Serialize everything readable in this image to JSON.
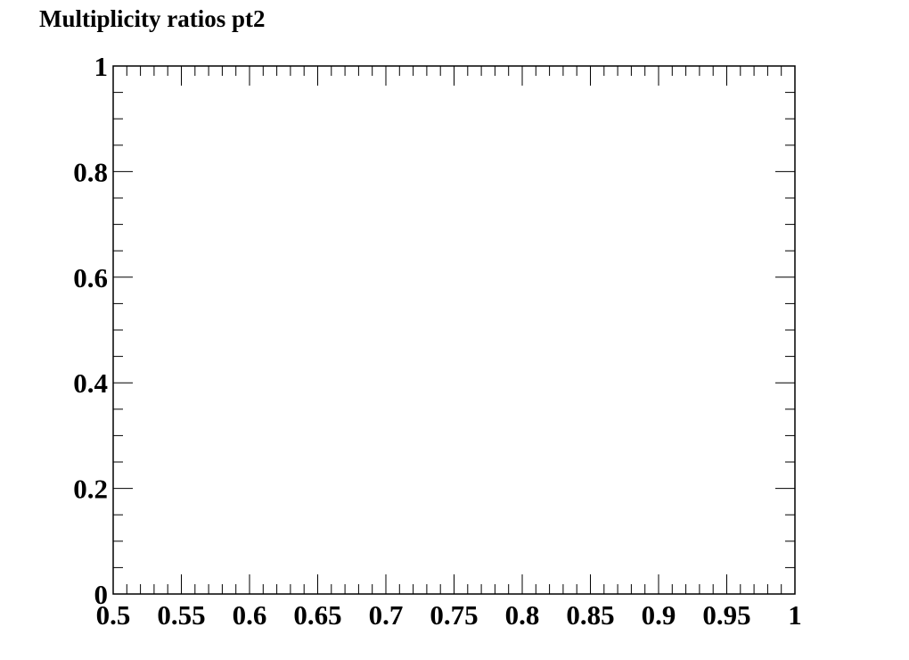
{
  "chart_data": {
    "type": "scatter",
    "title": "Multiplicity ratios pt2",
    "xlabel": "",
    "ylabel": "",
    "xlim": [
      0.5,
      1.0
    ],
    "ylim": [
      0.0,
      1.0
    ],
    "x_ticks": [
      "0.5",
      "0.55",
      "0.6",
      "0.65",
      "0.7",
      "0.75",
      "0.8",
      "0.85",
      "0.9",
      "0.95",
      "1"
    ],
    "x_tick_values": [
      0.5,
      0.55,
      0.6,
      0.65,
      0.7,
      0.75,
      0.8,
      0.85,
      0.9,
      0.95,
      1.0
    ],
    "y_ticks": [
      "0",
      "0.2",
      "0.4",
      "0.6",
      "0.8",
      "1"
    ],
    "y_tick_values": [
      0.0,
      0.2,
      0.4,
      0.6,
      0.8,
      1.0
    ],
    "x_minor_per_major": 5,
    "y_minor_per_major": 4,
    "grid": false,
    "series": []
  }
}
